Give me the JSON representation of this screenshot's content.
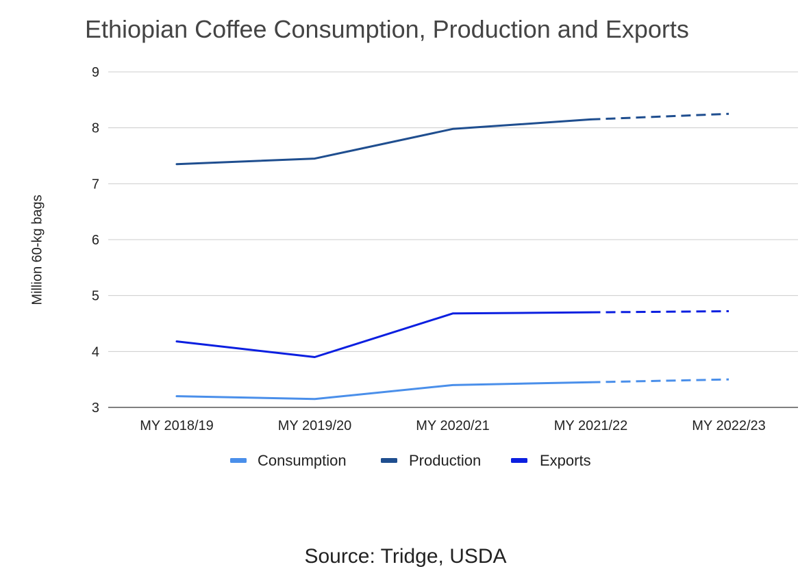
{
  "chart_data": {
    "type": "line",
    "title": "Ethiopian Coffee Consumption, Production and Exports",
    "xlabel": "",
    "ylabel": "Million 60-kg bags",
    "categories": [
      "MY 2018/19",
      "MY 2019/20",
      "MY 2020/21",
      "MY 2021/22",
      "MY 2022/23"
    ],
    "ylim": [
      3,
      9
    ],
    "yticks": [
      "3",
      "4",
      "5",
      "6",
      "7",
      "8",
      "9"
    ],
    "grid": true,
    "legend_position": "bottom",
    "dashed_from_category": "MY 2021/22",
    "series": [
      {
        "name": "Consumption",
        "color": "#4a8fea",
        "values": [
          3.2,
          3.15,
          3.4,
          3.45,
          3.5
        ]
      },
      {
        "name": "Production",
        "color": "#1f4e8f",
        "values": [
          7.35,
          7.45,
          7.98,
          8.15,
          8.25
        ]
      },
      {
        "name": "Exports",
        "color": "#0b1fe0",
        "values": [
          4.18,
          3.9,
          4.68,
          4.7,
          4.72
        ]
      }
    ],
    "source": "Source: Tridge, USDA"
  }
}
